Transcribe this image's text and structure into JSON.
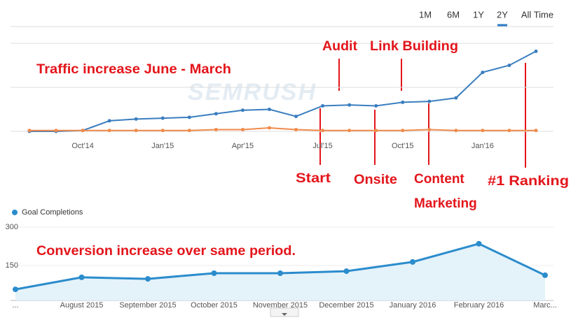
{
  "range_buttons": [
    "1M",
    "6M",
    "1Y",
    "2Y",
    "All Time"
  ],
  "active_range": "2Y",
  "watermark": "SEMRUSH",
  "chart_data": [
    {
      "type": "line",
      "annotations": [
        "Traffic increase June - March",
        "Audit",
        "Link Building",
        "Start",
        "Onsite",
        "Content Marketing",
        "#1 Ranking"
      ],
      "categories": [
        null,
        null,
        "Oct'14",
        null,
        null,
        "Jan'15",
        null,
        null,
        "Apr'15",
        null,
        null,
        "Jul'15",
        null,
        null,
        "Oct'15",
        null,
        null,
        "Jan'16",
        null,
        null
      ],
      "series": [
        {
          "color": "#3a7ebf",
          "values": [
            0,
            0,
            1,
            12,
            14,
            15,
            16,
            20,
            24,
            25,
            17,
            29,
            30,
            29,
            33,
            34,
            38,
            67,
            75,
            91
          ]
        },
        {
          "color": "#f08a4b",
          "values": [
            1,
            1,
            1,
            1,
            1,
            1,
            1,
            2,
            2,
            4,
            2,
            1,
            1,
            1,
            1,
            2,
            1,
            1,
            1,
            1
          ]
        }
      ],
      "ylim": [
        0,
        100
      ],
      "grid": true
    },
    {
      "type": "area",
      "annotations": [
        "Conversion increase over same period."
      ],
      "categories": [
        "...",
        "August 2015",
        "September 2015",
        "October 2015",
        "November 2015",
        "December 2015",
        "January 2016",
        "February 2016",
        "Marc..."
      ],
      "series": [
        {
          "name": "Goal Completions",
          "color": "#2b8ccc",
          "values": [
            57,
            104,
            98,
            120,
            120,
            128,
            164,
            235,
            112
          ]
        }
      ],
      "ylim": [
        0,
        300
      ],
      "yticks": [
        150,
        300
      ],
      "legend": "top-left"
    }
  ]
}
